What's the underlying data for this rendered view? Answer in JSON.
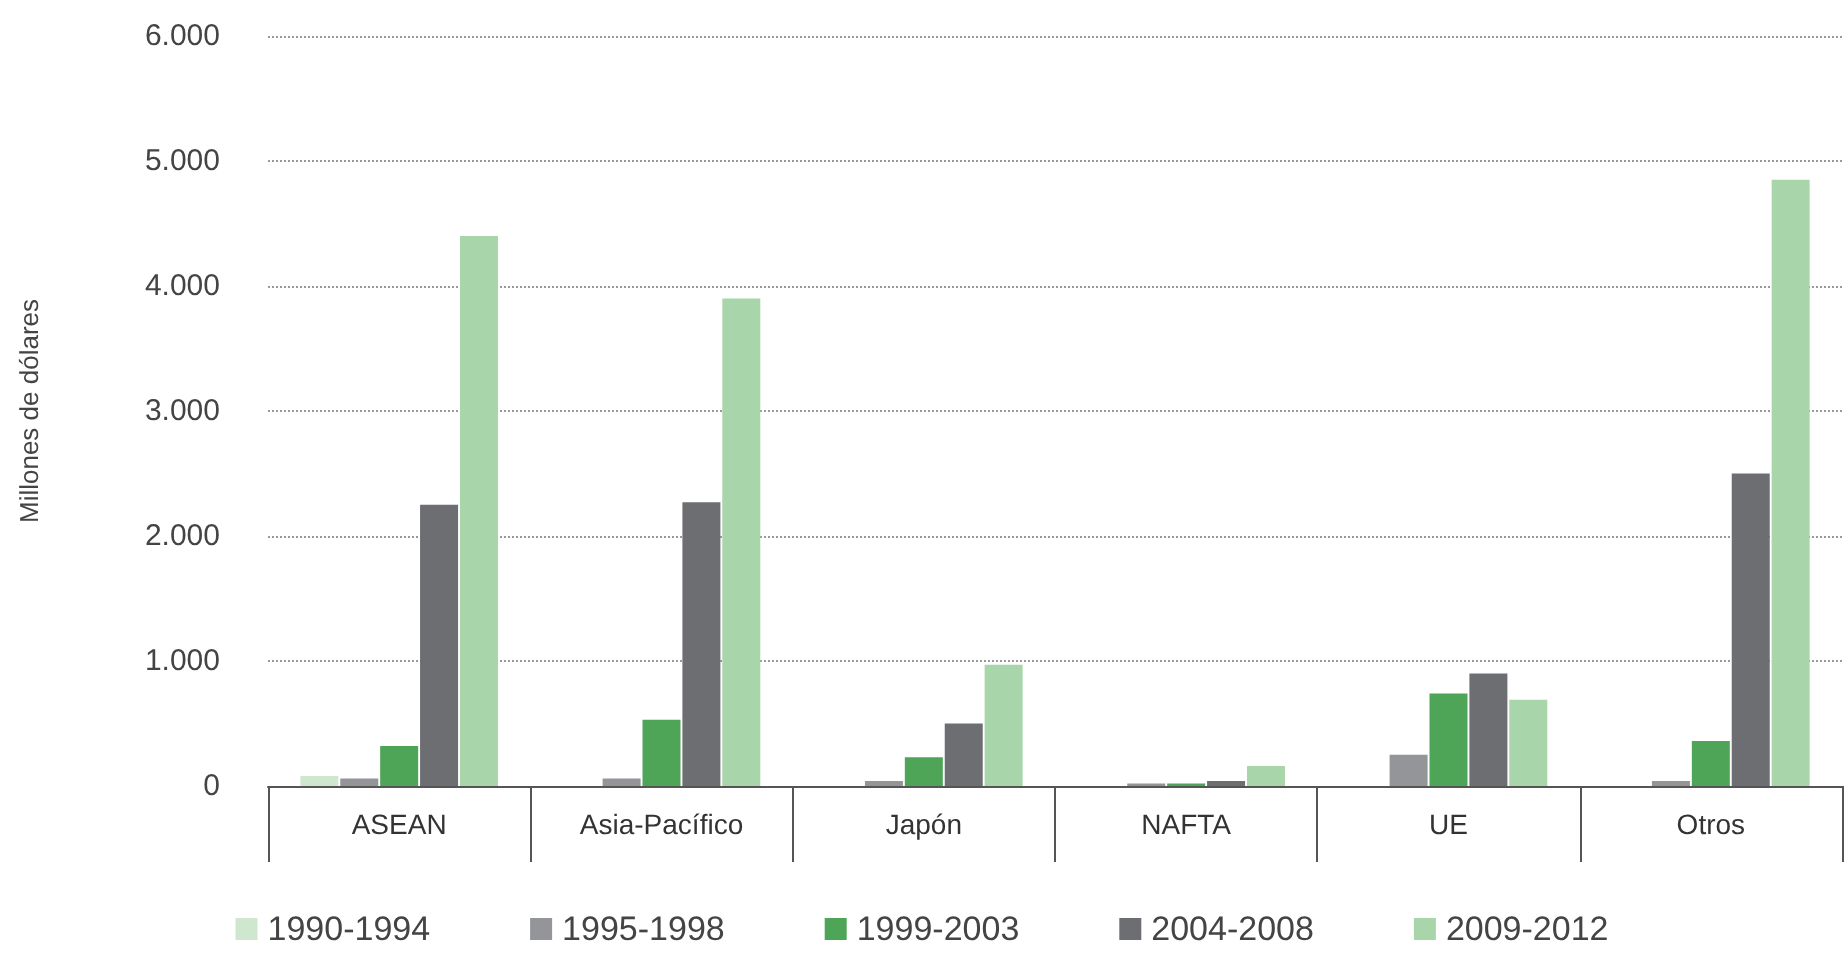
{
  "chart_data": {
    "type": "bar",
    "ylabel": "Millones de dólares",
    "categories": [
      "ASEAN",
      "Asia-Pacífico",
      "Japón",
      "NAFTA",
      "UE",
      "Otros"
    ],
    "series": [
      {
        "name": "1990-1994",
        "color": "#cfe6cf",
        "values": [
          80,
          null,
          null,
          null,
          null,
          null
        ]
      },
      {
        "name": "1995-1998",
        "color": "#939598",
        "values": [
          60,
          60,
          40,
          20,
          250,
          40
        ]
      },
      {
        "name": "1999-2003",
        "color": "#4fa557",
        "values": [
          320,
          530,
          230,
          20,
          740,
          360
        ]
      },
      {
        "name": "2004-2008",
        "color": "#6d6e71",
        "values": [
          2250,
          2270,
          500,
          40,
          900,
          2500
        ]
      },
      {
        "name": "2009-2012",
        "color": "#a8d5aa",
        "values": [
          4400,
          3900,
          970,
          160,
          690,
          4850
        ]
      }
    ],
    "ylim": [
      0,
      6000
    ],
    "yticks": [
      {
        "value": 0,
        "label": "0"
      },
      {
        "value": 1000,
        "label": "1.000"
      },
      {
        "value": 2000,
        "label": "2.000"
      },
      {
        "value": 3000,
        "label": "3.000"
      },
      {
        "value": 4000,
        "label": "4.000"
      },
      {
        "value": 5000,
        "label": "5.000"
      },
      {
        "value": 6000,
        "label": "6.000"
      }
    ],
    "grid": "y",
    "legend": "bottom"
  }
}
